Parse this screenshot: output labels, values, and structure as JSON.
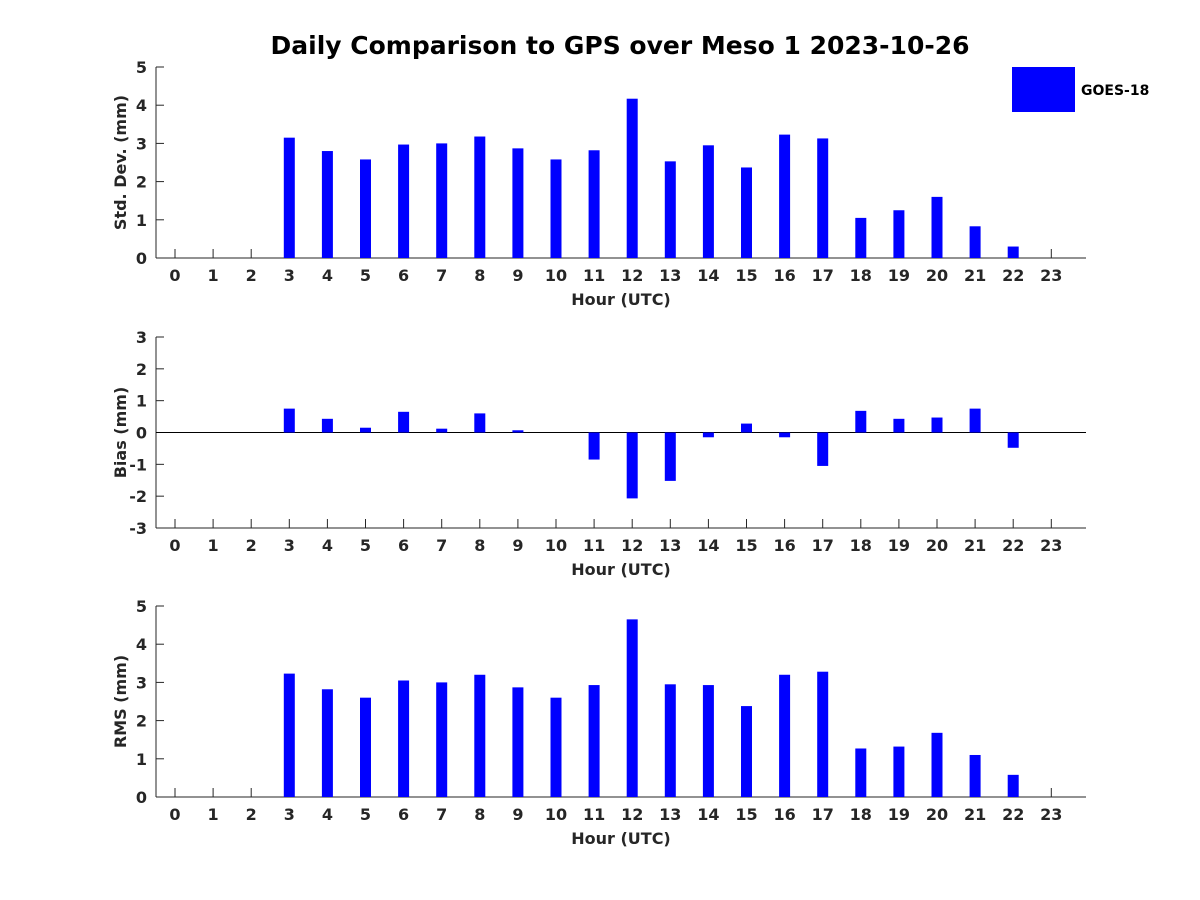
{
  "bar_color": "#0000ff",
  "axis_color": "#262626",
  "chart_data": {
    "type": "bar",
    "title": "Daily Comparison to GPS over Meso 1 2023-10-26",
    "legend": {
      "label": "GOES-18",
      "placement": "top-right"
    },
    "categories": [
      "0",
      "1",
      "2",
      "3",
      "4",
      "5",
      "6",
      "7",
      "8",
      "9",
      "10",
      "11",
      "12",
      "13",
      "14",
      "15",
      "16",
      "17",
      "18",
      "19",
      "20",
      "21",
      "22",
      "23"
    ],
    "panels": [
      {
        "id": "std",
        "xlabel": "Hour (UTC)",
        "ylabel": "Std. Dev. (mm)",
        "ylim": [
          0,
          5
        ],
        "yticks": [
          "0",
          "1",
          "2",
          "3",
          "4",
          "5"
        ],
        "series": [
          {
            "name": "GOES-18",
            "values": [
              null,
              null,
              null,
              3.15,
              2.8,
              2.58,
              2.97,
              3.0,
              3.18,
              2.87,
              2.58,
              2.82,
              4.17,
              2.53,
              2.95,
              2.37,
              3.23,
              3.13,
              1.05,
              1.25,
              1.6,
              0.83,
              0.3,
              null
            ]
          }
        ]
      },
      {
        "id": "bias",
        "xlabel": "Hour (UTC)",
        "ylabel": "Bias (mm)",
        "ylim": [
          -3,
          3
        ],
        "yticks": [
          "-3",
          "-2",
          "-1",
          "0",
          "1",
          "2",
          "3"
        ],
        "series": [
          {
            "name": "GOES-18",
            "values": [
              null,
              null,
              null,
              0.75,
              0.43,
              0.15,
              0.65,
              0.12,
              0.6,
              0.07,
              null,
              -0.85,
              -2.07,
              -1.52,
              -0.15,
              0.28,
              -0.15,
              -1.05,
              0.68,
              0.43,
              0.47,
              0.75,
              -0.48,
              null
            ]
          }
        ]
      },
      {
        "id": "rms",
        "xlabel": "Hour (UTC)",
        "ylabel": "RMS (mm)",
        "ylim": [
          0,
          5
        ],
        "yticks": [
          "0",
          "1",
          "2",
          "3",
          "4",
          "5"
        ],
        "series": [
          {
            "name": "GOES-18",
            "values": [
              null,
              null,
              null,
              3.23,
              2.82,
              2.6,
              3.05,
              3.0,
              3.2,
              2.87,
              2.6,
              2.93,
              4.65,
              2.95,
              2.93,
              2.38,
              3.2,
              3.28,
              1.27,
              1.32,
              1.68,
              1.1,
              0.58,
              null
            ]
          }
        ]
      }
    ]
  }
}
